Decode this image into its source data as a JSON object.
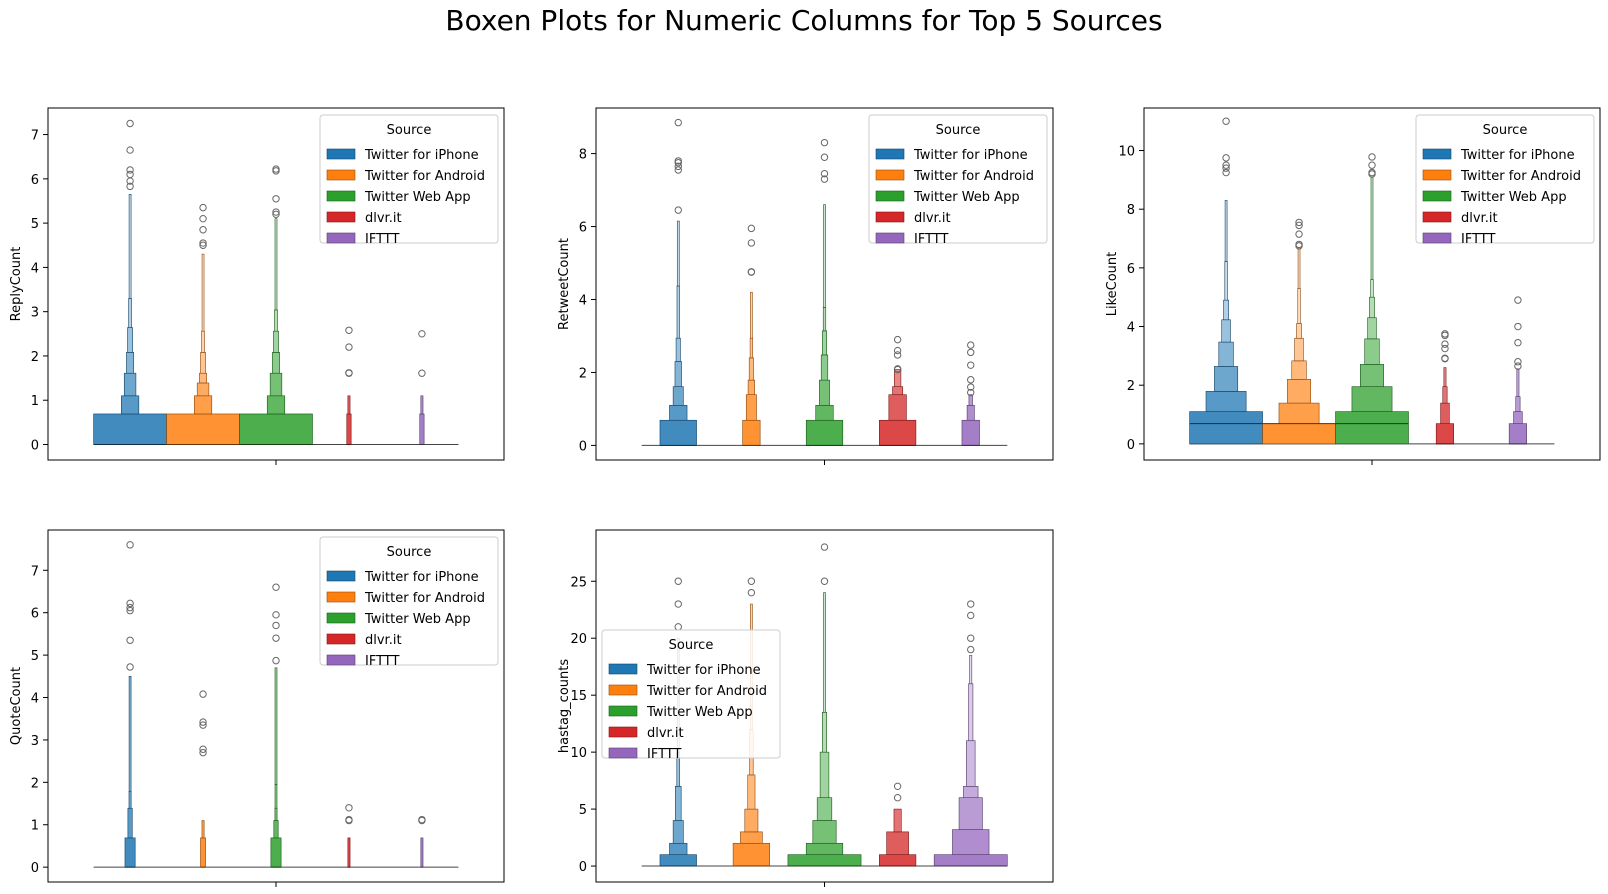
{
  "figure": {
    "title": "Boxen Plots for Numeric Columns for Top 5 Sources"
  },
  "colors": {
    "Twitter for iPhone": "#1f77b4",
    "Twitter for Android": "#ff7f0e",
    "Twitter Web App": "#2ca02c",
    "dlvr.it": "#d62728",
    "IFTTT": "#9467bd"
  },
  "chart_data": [
    {
      "type": "boxen",
      "ylabel": "ReplyCount",
      "xlabel": "",
      "yticks": [
        0,
        1,
        2,
        3,
        4,
        5,
        6,
        7
      ],
      "ylim": [
        -0.35,
        7.6
      ],
      "legend": {
        "title": "Source",
        "placement": "upper-right",
        "entries": [
          "Twitter for iPhone",
          "Twitter for Android",
          "Twitter Web App",
          "dlvr.it",
          "IFTTT"
        ]
      },
      "series": [
        {
          "name": "Twitter for iPhone",
          "median": 0,
          "boxes": [
            [
              0,
              0.69,
              1.0
            ],
            [
              0.69,
              1.1,
              0.24
            ],
            [
              1.1,
              1.61,
              0.16
            ],
            [
              1.61,
              2.08,
              0.1
            ],
            [
              2.08,
              2.64,
              0.07
            ],
            [
              2.64,
              3.3,
              0.04
            ],
            [
              3.3,
              5.65,
              0.02
            ]
          ],
          "outliers": [
            5.83,
            5.95,
            6.1,
            6.2,
            6.65,
            7.25
          ]
        },
        {
          "name": "Twitter for Android",
          "median": 0,
          "boxes": [
            [
              0,
              0.69,
              1.0
            ],
            [
              0.69,
              1.1,
              0.24
            ],
            [
              1.1,
              1.39,
              0.16
            ],
            [
              1.39,
              1.61,
              0.1
            ],
            [
              1.61,
              2.08,
              0.07
            ],
            [
              2.08,
              2.56,
              0.04
            ],
            [
              2.56,
              4.3,
              0.02
            ]
          ],
          "outliers": [
            4.5,
            4.55,
            4.85,
            5.1,
            5.35
          ]
        },
        {
          "name": "Twitter Web App",
          "median": 0,
          "boxes": [
            [
              0,
              0.69,
              1.0
            ],
            [
              0.69,
              1.1,
              0.24
            ],
            [
              1.1,
              1.61,
              0.16
            ],
            [
              1.61,
              2.08,
              0.1
            ],
            [
              2.08,
              2.56,
              0.07
            ],
            [
              2.56,
              3.04,
              0.04
            ],
            [
              3.04,
              5.1,
              0.02
            ]
          ],
          "outliers": [
            5.2,
            5.25,
            5.55,
            6.18,
            6.22
          ]
        },
        {
          "name": "dlvr.it",
          "median": 0,
          "boxes": [
            [
              0,
              0.69,
              0.06
            ],
            [
              0.69,
              1.1,
              0.03
            ]
          ],
          "outliers": [
            1.61,
            1.62,
            2.2,
            2.58
          ]
        },
        {
          "name": "IFTTT",
          "median": 0,
          "boxes": [
            [
              0,
              0.69,
              0.06
            ],
            [
              0.69,
              1.1,
              0.03
            ]
          ],
          "outliers": [
            1.61,
            2.5
          ]
        }
      ]
    },
    {
      "type": "boxen",
      "ylabel": "RetweetCount",
      "xlabel": "",
      "yticks": [
        0,
        2,
        4,
        6,
        8
      ],
      "ylim": [
        -0.4,
        9.25
      ],
      "legend": {
        "title": "Source",
        "placement": "upper-right",
        "entries": [
          "Twitter for iPhone",
          "Twitter for Android",
          "Twitter Web App",
          "dlvr.it",
          "IFTTT"
        ]
      },
      "series": [
        {
          "name": "Twitter for iPhone",
          "median": 0,
          "boxes": [
            [
              0,
              0.69,
              0.5
            ],
            [
              0.69,
              1.1,
              0.24
            ],
            [
              1.1,
              1.61,
              0.14
            ],
            [
              1.61,
              2.3,
              0.09
            ],
            [
              2.3,
              2.94,
              0.06
            ],
            [
              2.94,
              4.37,
              0.035
            ],
            [
              4.37,
              6.15,
              0.015
            ]
          ],
          "outliers": [
            6.45,
            7.55,
            7.65,
            7.75,
            7.8,
            8.85
          ]
        },
        {
          "name": "Twitter for Android",
          "median": 0,
          "boxes": [
            [
              0,
              0.69,
              0.24
            ],
            [
              0.69,
              1.39,
              0.14
            ],
            [
              1.39,
              1.79,
              0.09
            ],
            [
              1.79,
              2.4,
              0.06
            ],
            [
              2.4,
              2.94,
              0.035
            ],
            [
              2.94,
              4.2,
              0.015
            ]
          ],
          "outliers": [
            4.75,
            4.76,
            5.55,
            5.95
          ]
        },
        {
          "name": "Twitter Web App",
          "median": 0,
          "boxes": [
            [
              0,
              0.69,
              0.5
            ],
            [
              0.69,
              1.1,
              0.24
            ],
            [
              1.1,
              1.79,
              0.14
            ],
            [
              1.79,
              2.48,
              0.09
            ],
            [
              2.48,
              3.14,
              0.06
            ],
            [
              3.14,
              3.78,
              0.035
            ],
            [
              3.78,
              6.6,
              0.015
            ]
          ],
          "outliers": [
            7.3,
            7.45,
            7.9,
            8.3
          ]
        },
        {
          "name": "dlvr.it",
          "median": 0,
          "boxes": [
            [
              0,
              0.69,
              0.5
            ],
            [
              0.69,
              1.39,
              0.24
            ],
            [
              1.39,
              1.61,
              0.14
            ],
            [
              1.61,
              2.08,
              0.09
            ]
          ],
          "outliers": [
            2.08,
            2.1,
            2.48,
            2.6,
            2.9
          ]
        },
        {
          "name": "IFTTT",
          "median": 0,
          "boxes": [
            [
              0,
              0.69,
              0.24
            ],
            [
              0.69,
              1.1,
              0.1
            ],
            [
              1.1,
              1.39,
              0.05
            ]
          ],
          "outliers": [
            1.45,
            1.6,
            1.8,
            2.2,
            2.55,
            2.75
          ]
        }
      ]
    },
    {
      "type": "boxen",
      "ylabel": "LikeCount",
      "xlabel": "",
      "yticks": [
        0,
        2,
        4,
        6,
        8,
        10
      ],
      "ylim": [
        -0.55,
        11.45
      ],
      "legend": {
        "title": "Source",
        "placement": "upper-right",
        "entries": [
          "Twitter for iPhone",
          "Twitter for Android",
          "Twitter Web App",
          "dlvr.it",
          "IFTTT"
        ]
      },
      "series": [
        {
          "name": "Twitter for iPhone",
          "median": 0.69,
          "boxes": [
            [
              0,
              1.1,
              1.0
            ],
            [
              1.1,
              1.79,
              0.55
            ],
            [
              1.79,
              2.64,
              0.32
            ],
            [
              2.64,
              3.47,
              0.2
            ],
            [
              3.47,
              4.23,
              0.12
            ],
            [
              4.23,
              4.9,
              0.07
            ],
            [
              4.9,
              6.22,
              0.035
            ],
            [
              6.22,
              8.3,
              0.015
            ]
          ],
          "outliers": [
            9.25,
            9.4,
            9.5,
            9.75,
            11.0
          ]
        },
        {
          "name": "Twitter for Android",
          "median": 0.69,
          "boxes": [
            [
              0,
              0.69,
              1.0
            ],
            [
              0.69,
              1.39,
              0.55
            ],
            [
              1.39,
              2.2,
              0.32
            ],
            [
              2.2,
              2.83,
              0.2
            ],
            [
              2.83,
              3.6,
              0.12
            ],
            [
              3.6,
              4.1,
              0.07
            ],
            [
              4.1,
              5.3,
              0.035
            ],
            [
              5.3,
              6.7,
              0.015
            ]
          ],
          "outliers": [
            6.75,
            6.8,
            7.15,
            7.45,
            7.55
          ]
        },
        {
          "name": "Twitter Web App",
          "median": 0.69,
          "boxes": [
            [
              0,
              1.1,
              1.0
            ],
            [
              1.1,
              1.95,
              0.55
            ],
            [
              1.95,
              2.71,
              0.32
            ],
            [
              2.71,
              3.58,
              0.2
            ],
            [
              3.58,
              4.3,
              0.12
            ],
            [
              4.3,
              5.0,
              0.07
            ],
            [
              5.0,
              5.6,
              0.035
            ],
            [
              5.6,
              9.1,
              0.015
            ]
          ],
          "outliers": [
            9.2,
            9.25,
            9.5,
            9.78
          ]
        },
        {
          "name": "dlvr.it",
          "median": 0,
          "boxes": [
            [
              0,
              0.69,
              0.24
            ],
            [
              0.69,
              1.39,
              0.12
            ],
            [
              1.39,
              1.95,
              0.06
            ],
            [
              1.95,
              2.6,
              0.03
            ]
          ],
          "outliers": [
            2.9,
            2.92,
            3.25,
            3.4,
            3.7,
            3.75
          ]
        },
        {
          "name": "IFTTT",
          "median": 0,
          "boxes": [
            [
              0,
              0.69,
              0.24
            ],
            [
              0.69,
              1.1,
              0.12
            ],
            [
              1.1,
              1.61,
              0.06
            ],
            [
              1.61,
              2.56,
              0.03
            ]
          ],
          "outliers": [
            2.65,
            2.8,
            3.45,
            4.0,
            4.9
          ]
        }
      ]
    },
    {
      "type": "boxen",
      "ylabel": "QuoteCount",
      "xlabel": "",
      "yticks": [
        0,
        1,
        2,
        3,
        4,
        5,
        6,
        7
      ],
      "ylim": [
        -0.35,
        7.95
      ],
      "legend": {
        "title": "Source",
        "placement": "upper-right",
        "entries": [
          "Twitter for iPhone",
          "Twitter for Android",
          "Twitter Web App",
          "dlvr.it",
          "IFTTT"
        ]
      },
      "series": [
        {
          "name": "Twitter for iPhone",
          "median": 0,
          "boxes": [
            [
              0,
              0.69,
              0.14
            ],
            [
              0.69,
              1.39,
              0.06
            ],
            [
              1.39,
              1.79,
              0.03
            ],
            [
              1.79,
              4.5,
              0.012
            ]
          ],
          "outliers": [
            4.72,
            5.35,
            6.05,
            6.12,
            6.22,
            7.6
          ]
        },
        {
          "name": "Twitter for Android",
          "median": 0,
          "boxes": [
            [
              0,
              0.69,
              0.07
            ],
            [
              0.69,
              1.1,
              0.03
            ]
          ],
          "outliers": [
            2.7,
            2.78,
            3.35,
            3.42,
            4.08
          ]
        },
        {
          "name": "Twitter Web App",
          "median": 0,
          "boxes": [
            [
              0,
              0.69,
              0.14
            ],
            [
              0.69,
              1.1,
              0.06
            ],
            [
              1.1,
              1.39,
              0.03
            ],
            [
              1.39,
              1.95,
              0.015
            ],
            [
              1.95,
              4.7,
              0.008
            ]
          ],
          "outliers": [
            4.87,
            5.4,
            5.7,
            5.95,
            6.6
          ]
        },
        {
          "name": "dlvr.it",
          "median": 0,
          "boxes": [
            [
              0,
              0.69,
              0.03
            ]
          ],
          "outliers": [
            1.1,
            1.12,
            1.4
          ]
        },
        {
          "name": "IFTTT",
          "median": 0,
          "boxes": [
            [
              0,
              0.69,
              0.03
            ]
          ],
          "outliers": [
            1.1,
            1.12
          ]
        }
      ]
    },
    {
      "type": "boxen",
      "ylabel": "hastag_counts",
      "xlabel": "",
      "yticks": [
        0,
        5,
        10,
        15,
        20,
        25
      ],
      "ylim": [
        -1.4,
        29.5
      ],
      "legend": {
        "title": "Source",
        "placement": "center-left",
        "entries": [
          "Twitter for iPhone",
          "Twitter for Android",
          "Twitter Web App",
          "dlvr.it",
          "IFTTT"
        ]
      },
      "series": [
        {
          "name": "Twitter for iPhone",
          "median": 0,
          "boxes": [
            [
              0,
              1,
              0.5
            ],
            [
              1,
              2,
              0.24
            ],
            [
              2,
              4,
              0.14
            ],
            [
              4,
              7,
              0.08
            ],
            [
              7,
              10,
              0.04
            ],
            [
              10,
              20,
              0.015
            ]
          ],
          "outliers": [
            21,
            23,
            25
          ]
        },
        {
          "name": "Twitter for Android",
          "median": 0,
          "boxes": [
            [
              0,
              2,
              0.5
            ],
            [
              2,
              3,
              0.3
            ],
            [
              3,
              5,
              0.18
            ],
            [
              5,
              8,
              0.1
            ],
            [
              8,
              12,
              0.05
            ],
            [
              12,
              23,
              0.015
            ]
          ],
          "outliers": [
            24,
            25
          ]
        },
        {
          "name": "Twitter Web App",
          "median": 0,
          "boxes": [
            [
              0,
              1,
              1.0
            ],
            [
              1,
              2,
              0.5
            ],
            [
              2,
              4,
              0.32
            ],
            [
              4,
              6,
              0.2
            ],
            [
              6,
              10,
              0.12
            ],
            [
              10,
              13.5,
              0.06
            ],
            [
              13.5,
              24,
              0.02
            ]
          ],
          "outliers": [
            25,
            28
          ]
        },
        {
          "name": "dlvr.it",
          "median": 0,
          "boxes": [
            [
              0,
              1,
              0.5
            ],
            [
              1,
              3,
              0.3
            ],
            [
              3,
              5,
              0.1
            ]
          ],
          "outliers": [
            6,
            7
          ]
        },
        {
          "name": "IFTTT",
          "median": 0,
          "boxes": [
            [
              0,
              1,
              1.0
            ],
            [
              1,
              3.2,
              0.5
            ],
            [
              3.2,
              6,
              0.32
            ],
            [
              6,
              7,
              0.2
            ],
            [
              7,
              11,
              0.12
            ],
            [
              11,
              16,
              0.06
            ],
            [
              16,
              18.5,
              0.03
            ]
          ],
          "outliers": [
            19,
            20,
            22,
            23
          ]
        }
      ]
    }
  ]
}
